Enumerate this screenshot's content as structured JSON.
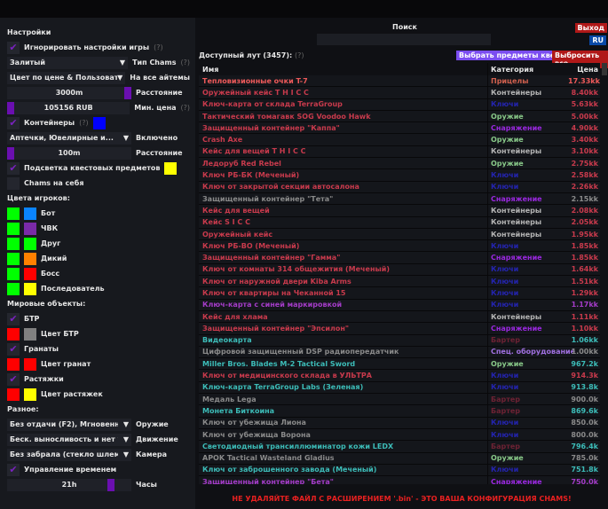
{
  "settings": {
    "title": "Настройки",
    "ignore_game": "Игнорировать настройки игры",
    "help": "(?)",
    "chams_type_value": "Залитый",
    "chams_type_label": "Тип Chams",
    "color_mode_value": "Цвет по цене & Пользовательский",
    "color_mode_label": "На все айтемы",
    "distance_value": "3000m",
    "distance_label": "Расстояние",
    "min_price_value": "105156 RUB",
    "min_price_label": "Мин. цена",
    "containers": "Контейнеры",
    "containers_value": "Аптечки, Ювелирные и...",
    "containers_state": "Включено",
    "containers_distance": "100m",
    "containers_distance_label": "Расстояние",
    "quest_highlight": "Подсветка квестовых предметов",
    "self_chams": "Chams на себя"
  },
  "players": {
    "title": "Цвета игроков:",
    "items": [
      {
        "label": "Бот",
        "c1": "#00ff00",
        "c2": "#0a84ff"
      },
      {
        "label": "ЧВК",
        "c1": "#00ff00",
        "c2": "#7a2aa8"
      },
      {
        "label": "Друг",
        "c1": "#00ff00",
        "c2": "#00ff00"
      },
      {
        "label": "Дикий",
        "c1": "#00ff00",
        "c2": "#ff8000"
      },
      {
        "label": "Босс",
        "c1": "#00ff00",
        "c2": "#ff0000"
      },
      {
        "label": "Последователь",
        "c1": "#00ff00",
        "c2": "#ffff00"
      }
    ]
  },
  "world": {
    "title": "Мировые объекты:",
    "btr": "БТР",
    "btr_color": "Цвет БТР",
    "grenades": "Гранаты",
    "grenades_color": "Цвет гранат",
    "tripwires": "Растяжки",
    "tripwires_color": "Цвет растяжек"
  },
  "misc": {
    "title": "Разное:",
    "weapon_value": "Без отдачи (F2), Мгновенное прицеливание",
    "weapon_label": "Оружие",
    "move_value": "Беск. выносливость и нет усталости",
    "move_label": "Движение",
    "camera_value": "Без забрала (стекло шлема)",
    "camera_label": "Камера",
    "time_control": "Управление временем",
    "hours_value": "21h",
    "hours_label": "Часы"
  },
  "search": {
    "label": "Поиск",
    "value": ""
  },
  "top": {
    "exit": "Выход",
    "lang": "RU"
  },
  "loot": {
    "title": "Доступный лут (3457):",
    "help": "(?)",
    "quest_btn": "Выбрать предметы квеста",
    "drop_btn": "Выбросить все",
    "columns": [
      "Имя",
      "Категория",
      "Цена"
    ],
    "colors": {
      "red": "#c83a4c",
      "bright": "#ee5a5a",
      "purple": "#a43cc8",
      "teal": "#3cbcb8",
      "gray": "#8a8a8a"
    },
    "cat_colors": {
      "Прицелы": "#d0604e",
      "Контейнеры": "#b4b4b4",
      "Ключи": "#2424b0",
      "Оружие": "#88c888",
      "Снаряжение": "#9a28e0",
      "Бартер": "#6e2234",
      "Спец. оборудование": "#a070e0"
    },
    "rows": [
      [
        "Тепловизионные очки T-7",
        "Прицелы",
        "17.33kk",
        "bright"
      ],
      [
        "Оружейный кейс T H I C C",
        "Контейнеры",
        "8.40kk",
        "red"
      ],
      [
        "Ключ-карта от склада TerraGroup",
        "Ключи",
        "5.63kk",
        "red"
      ],
      [
        "Тактический томагавк SOG Voodoo Hawk",
        "Оружие",
        "5.00kk",
        "red"
      ],
      [
        "Защищенный контейнер \"Каппа\"",
        "Снаряжение",
        "4.90kk",
        "red"
      ],
      [
        "Crash Axe",
        "Оружие",
        "3.40kk",
        "red"
      ],
      [
        "Кейс для вещей T H I C C",
        "Контейнеры",
        "3.10kk",
        "red"
      ],
      [
        "Ледоруб Red Rebel",
        "Оружие",
        "2.75kk",
        "red"
      ],
      [
        "Ключ РБ-БК (Меченый)",
        "Ключи",
        "2.58kk",
        "red"
      ],
      [
        "Ключ от закрытой секции автосалона",
        "Ключи",
        "2.26kk",
        "red"
      ],
      [
        "Защищенный контейнер \"Тета\"",
        "Снаряжение",
        "2.15kk",
        "gray"
      ],
      [
        "Кейс для вещей",
        "Контейнеры",
        "2.08kk",
        "red"
      ],
      [
        "Кейс S I C C",
        "Контейнеры",
        "2.05kk",
        "red"
      ],
      [
        "Оружейный кейс",
        "Контейнеры",
        "1.95kk",
        "red"
      ],
      [
        "Ключ РБ-ВО (Меченый)",
        "Ключи",
        "1.85kk",
        "red"
      ],
      [
        "Защищенный контейнер \"Гамма\"",
        "Снаряжение",
        "1.85kk",
        "red"
      ],
      [
        "Ключ от комнаты 314 общежития (Меченый)",
        "Ключи",
        "1.64kk",
        "red"
      ],
      [
        "Ключ от наружной двери Kiba Arms",
        "Ключи",
        "1.51kk",
        "red"
      ],
      [
        "Ключ от квартиры на Чеканной 15",
        "Ключи",
        "1.29kk",
        "red"
      ],
      [
        "Ключ-карта с синей маркировкой",
        "Ключи",
        "1.17kk",
        "purple"
      ],
      [
        "Кейс для хлама",
        "Контейнеры",
        "1.11kk",
        "red"
      ],
      [
        "Защищенный контейнер \"Эпсилон\"",
        "Снаряжение",
        "1.10kk",
        "red"
      ],
      [
        "Видеокарта",
        "Бартер",
        "1.06kk",
        "teal"
      ],
      [
        "Цифровой защищенный DSP радиопередатчик",
        "Спец. оборудование",
        "1.00kk",
        "gray"
      ],
      [
        "Miller Bros. Blades M-2 Tactical Sword",
        "Оружие",
        "967.2k",
        "teal"
      ],
      [
        "Ключ от медицинского склада в УЛЬТРА",
        "Ключи",
        "914.3k",
        "red"
      ],
      [
        "Ключ-карта TerraGroup Labs (Зеленая)",
        "Ключи",
        "913.8k",
        "teal"
      ],
      [
        "Медаль Lega",
        "Бартер",
        "900.0k",
        "gray"
      ],
      [
        "Монета Биткоина",
        "Бартер",
        "869.6k",
        "teal"
      ],
      [
        "Ключ от убежища Лиона",
        "Ключи",
        "850.0k",
        "gray"
      ],
      [
        "Ключ от убежища Ворона",
        "Ключи",
        "800.0k",
        "gray"
      ],
      [
        "Светодиодный трансиллюминатор кожи LEDX",
        "Бартер",
        "796.4k",
        "teal"
      ],
      [
        "APOK Tactical Wasteland Gladius",
        "Оружие",
        "785.0k",
        "gray"
      ],
      [
        "Ключ от заброшенного завода (Меченый)",
        "Ключи",
        "751.8k",
        "teal"
      ],
      [
        "Защищенный контейнер \"Бета\"",
        "Снаряжение",
        "750.0k",
        "purple"
      ]
    ]
  },
  "warning": "НЕ УДАЛЯЙТЕ ФАЙЛ С РАСШИРЕНИЕМ '.bin' - ЭТО ВАША КОНФИГУРАЦИЯ CHAMS!"
}
